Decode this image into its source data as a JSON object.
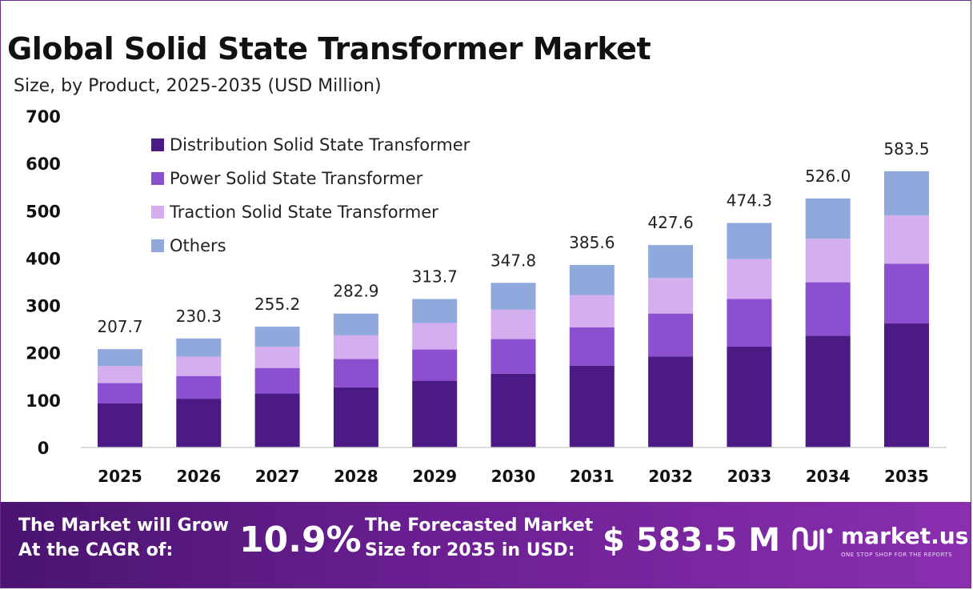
{
  "header": {
    "title": "Global Solid State Transformer Market",
    "subtitle": "Size, by Product, 2025-2035 (USD Million)"
  },
  "colors": {
    "distribution": "#4b1a85",
    "power": "#8b4fd0",
    "traction": "#d4aeee",
    "others": "#8fa9dd",
    "footer": "#6b1f92"
  },
  "chart_data": {
    "type": "bar",
    "stacked": true,
    "categories": [
      "2025",
      "2026",
      "2027",
      "2028",
      "2029",
      "2030",
      "2031",
      "2032",
      "2033",
      "2034",
      "2035"
    ],
    "series": [
      {
        "name": "Distribution Solid State Transformer",
        "values": [
          93,
          103,
          114,
          127,
          141,
          156,
          173,
          192,
          213,
          236,
          262
        ]
      },
      {
        "name": "Power Solid State Transformer",
        "values": [
          43,
          48,
          54,
          60,
          66,
          73,
          81,
          91,
          101,
          113,
          126
        ]
      },
      {
        "name": "Traction Solid State Transformer",
        "values": [
          36,
          41,
          45,
          50,
          56,
          62,
          68,
          75,
          84,
          92,
          102
        ]
      },
      {
        "name": "Others",
        "values": [
          35.7,
          38.3,
          42.2,
          45.9,
          50.7,
          56.8,
          63.6,
          69.6,
          76.3,
          85.0,
          93.5
        ]
      }
    ],
    "totals": [
      "207.7",
      "230.3",
      "255.2",
      "282.9",
      "313.7",
      "347.8",
      "385.6",
      "427.6",
      "474.3",
      "526.0",
      "583.5"
    ],
    "yticks": [
      "0",
      "100",
      "200",
      "300",
      "400",
      "500",
      "600",
      "700"
    ],
    "ylim": [
      0,
      700
    ],
    "grid": false,
    "legend_position": "top-left"
  },
  "footer": {
    "cagr_line1": "The Market will Grow",
    "cagr_line2": "At the CAGR of:",
    "cagr_value": "10.9%",
    "forecast_line1": "The Forecasted Market",
    "forecast_line2": "Size for 2035 in USD:",
    "forecast_value": "$ 583.5 M",
    "brand_name": "market.us",
    "brand_tagline": "ONE STOP SHOP FOR THE REPORTS",
    "brand_icon": "market-us-logo-icon"
  }
}
